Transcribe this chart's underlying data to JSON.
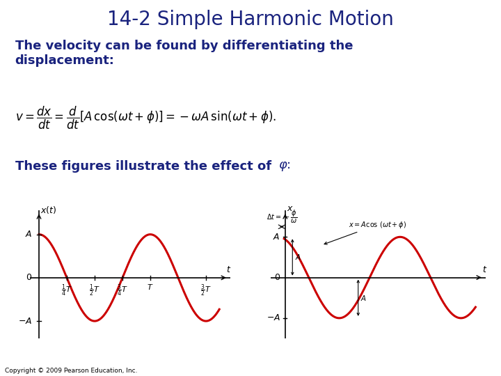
{
  "title": "14-2 Simple Harmonic Motion",
  "title_color": "#1a237e",
  "title_fontsize": 20,
  "bg_color": "#ffffff",
  "body_text_color": "#1a237e",
  "body_text": "The velocity can be found by differentiating the\ndisplacement:",
  "body_fontsize": 13,
  "figures_text_bold": "These figures illustrate the effect of ",
  "copyright": "Copyright © 2009 Pearson Education, Inc.",
  "plot_color": "#cc0000",
  "plot_linewidth": 2.2
}
